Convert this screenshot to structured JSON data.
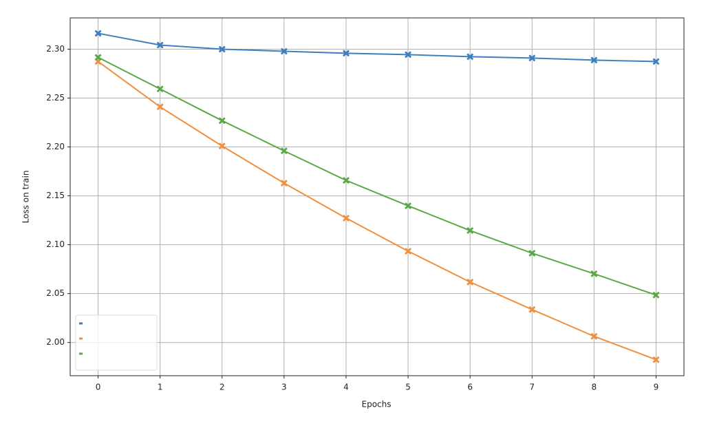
{
  "chart_data": {
    "type": "line",
    "x_label": "Epochs",
    "y_label": "Loss on train",
    "x": [
      0,
      1,
      2,
      3,
      4,
      5,
      6,
      7,
      8,
      9
    ],
    "series": [
      {
        "color": "#3f7fbf",
        "values": [
          2.3162,
          2.3042,
          2.3,
          2.2979,
          2.2958,
          2.2944,
          2.2923,
          2.2909,
          2.2888,
          2.2874
        ]
      },
      {
        "color": "#f28e3c",
        "values": [
          2.2874,
          2.241,
          2.2009,
          2.163,
          2.1272,
          2.0934,
          2.0618,
          2.0337,
          2.0063,
          1.9824
        ]
      },
      {
        "color": "#5aa845",
        "values": [
          2.2916,
          2.2593,
          2.2269,
          2.196,
          2.1658,
          2.1398,
          2.1145,
          2.0913,
          2.0703,
          2.0485
        ]
      }
    ],
    "xlim": [
      -0.45,
      9.45
    ],
    "xticks": [
      0,
      1,
      2,
      3,
      4,
      5,
      6,
      7,
      8,
      9
    ],
    "ylim": [
      1.966,
      2.332
    ],
    "yticks": [
      {
        "value": 2.0,
        "label": "2.00"
      },
      2.05,
      {
        "value": 2.1,
        "label": "2.10"
      },
      2.15,
      {
        "value": 2.2,
        "label": "2.20"
      },
      2.25,
      {
        "value": 2.3,
        "label": "2.30"
      }
    ],
    "grid": true,
    "legend": "lower left",
    "marker": "X"
  }
}
